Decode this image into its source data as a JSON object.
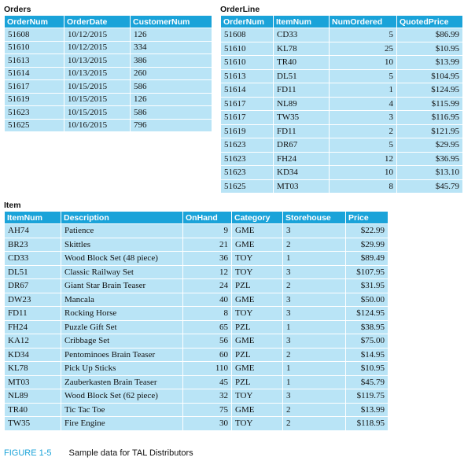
{
  "orders": {
    "title": "Orders",
    "columns": [
      "OrderNum",
      "OrderDate",
      "CustomerNum"
    ],
    "rows": [
      [
        "51608",
        "10/12/2015",
        "126"
      ],
      [
        "51610",
        "10/12/2015",
        "334"
      ],
      [
        "51613",
        "10/13/2015",
        "386"
      ],
      [
        "51614",
        "10/13/2015",
        "260"
      ],
      [
        "51617",
        "10/15/2015",
        "586"
      ],
      [
        "51619",
        "10/15/2015",
        "126"
      ],
      [
        "51623",
        "10/15/2015",
        "586"
      ],
      [
        "51625",
        "10/16/2015",
        "796"
      ]
    ]
  },
  "orderline": {
    "title": "OrderLine",
    "columns": [
      "OrderNum",
      "ItemNum",
      "NumOrdered",
      "QuotedPrice"
    ],
    "rows": [
      [
        "51608",
        "CD33",
        "5",
        "$86.99"
      ],
      [
        "51610",
        "KL78",
        "25",
        "$10.95"
      ],
      [
        "51610",
        "TR40",
        "10",
        "$13.99"
      ],
      [
        "51613",
        "DL51",
        "5",
        "$104.95"
      ],
      [
        "51614",
        "FD11",
        "1",
        "$124.95"
      ],
      [
        "51617",
        "NL89",
        "4",
        "$115.99"
      ],
      [
        "51617",
        "TW35",
        "3",
        "$116.95"
      ],
      [
        "51619",
        "FD11",
        "2",
        "$121.95"
      ],
      [
        "51623",
        "DR67",
        "5",
        "$29.95"
      ],
      [
        "51623",
        "FH24",
        "12",
        "$36.95"
      ],
      [
        "51623",
        "KD34",
        "10",
        "$13.10"
      ],
      [
        "51625",
        "MT03",
        "8",
        "$45.79"
      ]
    ]
  },
  "item": {
    "title": "Item",
    "columns": [
      "ItemNum",
      "Description",
      "OnHand",
      "Category",
      "Storehouse",
      "Price"
    ],
    "rows": [
      [
        "AH74",
        "Patience",
        "9",
        "GME",
        "3",
        "$22.99"
      ],
      [
        "BR23",
        "Skittles",
        "21",
        "GME",
        "2",
        "$29.99"
      ],
      [
        "CD33",
        "Wood Block Set (48 piece)",
        "36",
        "TOY",
        "1",
        "$89.49"
      ],
      [
        "DL51",
        "Classic Railway Set",
        "12",
        "TOY",
        "3",
        "$107.95"
      ],
      [
        "DR67",
        "Giant Star Brain Teaser",
        "24",
        "PZL",
        "2",
        "$31.95"
      ],
      [
        "DW23",
        "Mancala",
        "40",
        "GME",
        "3",
        "$50.00"
      ],
      [
        "FD11",
        "Rocking Horse",
        "8",
        "TOY",
        "3",
        "$124.95"
      ],
      [
        "FH24",
        "Puzzle Gift Set",
        "65",
        "PZL",
        "1",
        "$38.95"
      ],
      [
        "KA12",
        "Cribbage Set",
        "56",
        "GME",
        "3",
        "$75.00"
      ],
      [
        "KD34",
        "Pentominoes Brain Teaser",
        "60",
        "PZL",
        "2",
        "$14.95"
      ],
      [
        "KL78",
        "Pick Up Sticks",
        "110",
        "GME",
        "1",
        "$10.95"
      ],
      [
        "MT03",
        "Zauberkasten Brain Teaser",
        "45",
        "PZL",
        "1",
        "$45.79"
      ],
      [
        "NL89",
        "Wood Block Set (62 piece)",
        "32",
        "TOY",
        "3",
        "$119.75"
      ],
      [
        "TR40",
        "Tic Tac Toe",
        "75",
        "GME",
        "2",
        "$13.99"
      ],
      [
        "TW35",
        "Fire Engine",
        "30",
        "TOY",
        "2",
        "$118.95"
      ]
    ]
  },
  "caption": {
    "figure": "FIGURE 1-5",
    "text": "Sample data for TAL Distributors"
  }
}
